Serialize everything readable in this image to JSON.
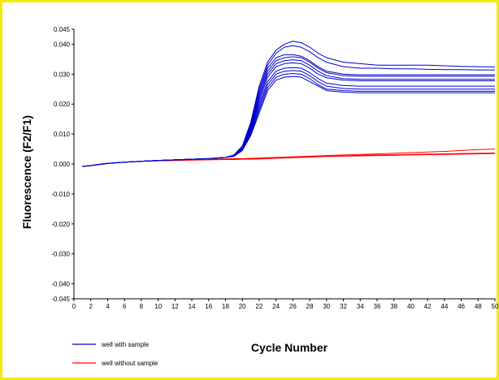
{
  "chart_data": {
    "type": "line",
    "xlabel": "Cycle Number",
    "ylabel": "Fluorescence (F2/F1)",
    "xlim": [
      0,
      50
    ],
    "ylim": [
      -0.045,
      0.045
    ],
    "x_ticks": [
      "0",
      "2",
      "4",
      "6",
      "8",
      "10",
      "12",
      "14",
      "16",
      "18",
      "20",
      "22",
      "24",
      "26",
      "28",
      "30",
      "32",
      "34",
      "36",
      "38",
      "40",
      "42",
      "44",
      "46",
      "48",
      "50"
    ],
    "y_ticks": [
      "0.045",
      "0.040",
      "0.030",
      "0.020",
      "0.010",
      "0.000",
      "-0.010",
      "-0.020",
      "-0.030",
      "-0.040",
      "-0.045"
    ],
    "y_tick_values": [
      0.045,
      0.04,
      0.03,
      0.02,
      0.01,
      0.0,
      -0.01,
      -0.02,
      -0.03,
      -0.04,
      -0.045
    ],
    "legend": [
      {
        "label": "well with sample",
        "color": "#0000cc"
      },
      {
        "label": "well without sample",
        "color": "#ff0000"
      }
    ],
    "grid": false,
    "legend_position": "bottom-left",
    "x": [
      1,
      2,
      4,
      6,
      8,
      10,
      12,
      14,
      16,
      18,
      19,
      20,
      21,
      22,
      23,
      24,
      25,
      26,
      27,
      28,
      29,
      30,
      32,
      34,
      36,
      38,
      40,
      42,
      44,
      46,
      48,
      50
    ],
    "series_with_sample": [
      [
        -0.0008,
        -0.0005,
        0.0002,
        0.0006,
        0.0009,
        0.0012,
        0.0014,
        0.0016,
        0.0018,
        0.0022,
        0.003,
        0.006,
        0.014,
        0.026,
        0.034,
        0.038,
        0.04,
        0.041,
        0.0405,
        0.039,
        0.037,
        0.0355,
        0.034,
        0.0335,
        0.033,
        0.033,
        0.033,
        0.033,
        0.0328,
        0.0326,
        0.0325,
        0.0324
      ],
      [
        -0.0008,
        -0.0005,
        0.0002,
        0.0006,
        0.0009,
        0.0012,
        0.0014,
        0.0016,
        0.0018,
        0.0022,
        0.003,
        0.006,
        0.0135,
        0.025,
        0.033,
        0.037,
        0.039,
        0.0395,
        0.039,
        0.0375,
        0.0355,
        0.034,
        0.0325,
        0.032,
        0.032,
        0.0318,
        0.0318,
        0.0316,
        0.0315,
        0.0315,
        0.0314,
        0.0314
      ],
      [
        -0.0008,
        -0.0005,
        0.0002,
        0.0006,
        0.0009,
        0.0012,
        0.0014,
        0.0016,
        0.0018,
        0.0022,
        0.0028,
        0.0055,
        0.013,
        0.024,
        0.032,
        0.0355,
        0.0365,
        0.0365,
        0.036,
        0.0345,
        0.0325,
        0.031,
        0.03,
        0.0298,
        0.0298,
        0.0298,
        0.0298,
        0.0298,
        0.0298,
        0.0298,
        0.0298,
        0.0298
      ],
      [
        -0.0008,
        -0.0005,
        0.0002,
        0.0006,
        0.0009,
        0.0012,
        0.0014,
        0.0016,
        0.0018,
        0.0022,
        0.0028,
        0.0055,
        0.0125,
        0.023,
        0.031,
        0.0345,
        0.0355,
        0.0358,
        0.0355,
        0.034,
        0.032,
        0.0305,
        0.0295,
        0.0293,
        0.0293,
        0.0293,
        0.0293,
        0.0293,
        0.0293,
        0.0293,
        0.0293,
        0.0293
      ],
      [
        -0.0008,
        -0.0005,
        0.0002,
        0.0006,
        0.0009,
        0.0012,
        0.0014,
        0.0016,
        0.0018,
        0.0022,
        0.0028,
        0.0052,
        0.012,
        0.022,
        0.03,
        0.0335,
        0.0345,
        0.0348,
        0.0345,
        0.033,
        0.031,
        0.0295,
        0.0285,
        0.0283,
        0.0283,
        0.0283,
        0.0283,
        0.0283,
        0.0283,
        0.0283,
        0.0283,
        0.0283
      ],
      [
        -0.0008,
        -0.0005,
        0.0002,
        0.0006,
        0.0009,
        0.0012,
        0.0014,
        0.0016,
        0.0018,
        0.0022,
        0.0027,
        0.005,
        0.0115,
        0.021,
        0.029,
        0.0325,
        0.0335,
        0.0338,
        0.0335,
        0.032,
        0.03,
        0.0288,
        0.028,
        0.0278,
        0.0278,
        0.0278,
        0.0278,
        0.0278,
        0.0278,
        0.0278,
        0.0278,
        0.0278
      ],
      [
        -0.0008,
        -0.0005,
        0.0002,
        0.0006,
        0.0009,
        0.0012,
        0.0014,
        0.0016,
        0.0018,
        0.0022,
        0.0027,
        0.005,
        0.011,
        0.02,
        0.0275,
        0.031,
        0.032,
        0.0322,
        0.032,
        0.0305,
        0.0285,
        0.027,
        0.0262,
        0.026,
        0.026,
        0.026,
        0.026,
        0.026,
        0.026,
        0.026,
        0.026,
        0.026
      ],
      [
        -0.0008,
        -0.0005,
        0.0002,
        0.0006,
        0.0009,
        0.0012,
        0.0014,
        0.0016,
        0.0018,
        0.0022,
        0.0026,
        0.0048,
        0.0105,
        0.019,
        0.0265,
        0.03,
        0.031,
        0.0312,
        0.031,
        0.0295,
        0.0275,
        0.026,
        0.0252,
        0.025,
        0.025,
        0.025,
        0.025,
        0.025,
        0.025,
        0.025,
        0.025,
        0.025
      ],
      [
        -0.0008,
        -0.0005,
        0.0002,
        0.0006,
        0.0009,
        0.0012,
        0.0014,
        0.0016,
        0.0018,
        0.0022,
        0.0026,
        0.0046,
        0.01,
        0.018,
        0.0255,
        0.029,
        0.03,
        0.0302,
        0.03,
        0.0285,
        0.0265,
        0.025,
        0.0245,
        0.0243,
        0.0243,
        0.0243,
        0.0243,
        0.0243,
        0.0243,
        0.0243,
        0.0243,
        0.0243
      ],
      [
        -0.0008,
        -0.0005,
        0.0002,
        0.0006,
        0.0009,
        0.0012,
        0.0014,
        0.0016,
        0.0018,
        0.0022,
        0.0026,
        0.0045,
        0.0095,
        0.017,
        0.0245,
        0.028,
        0.029,
        0.0292,
        0.029,
        0.0275,
        0.026,
        0.0245,
        0.024,
        0.0238,
        0.0238,
        0.0238,
        0.0238,
        0.0238,
        0.0238,
        0.0238,
        0.0238,
        0.0238
      ]
    ],
    "series_without_sample": [
      [
        -0.0008,
        -0.0005,
        0.0002,
        0.0006,
        0.0009,
        0.0011,
        0.0013,
        0.0015,
        0.0016,
        0.0017,
        0.0018,
        0.0018,
        0.0019,
        0.002,
        0.0021,
        0.0022,
        0.0023,
        0.0024,
        0.0025,
        0.0026,
        0.0027,
        0.0028,
        0.003,
        0.0032,
        0.0034,
        0.0036,
        0.0038,
        0.004,
        0.0042,
        0.0045,
        0.0048,
        0.005
      ],
      [
        -0.0008,
        -0.0005,
        0.0002,
        0.0006,
        0.0009,
        0.0011,
        0.0012,
        0.0014,
        0.0015,
        0.0016,
        0.0016,
        0.0017,
        0.0017,
        0.0018,
        0.0019,
        0.002,
        0.0021,
        0.0022,
        0.0023,
        0.0024,
        0.0025,
        0.0026,
        0.0027,
        0.0029,
        0.003,
        0.0031,
        0.0032,
        0.0033,
        0.0034,
        0.0035,
        0.0036,
        0.0037
      ],
      [
        -0.0008,
        -0.0005,
        0.0002,
        0.0006,
        0.0009,
        0.0011,
        0.0012,
        0.0013,
        0.0014,
        0.0015,
        0.0015,
        0.0016,
        0.0016,
        0.0017,
        0.0018,
        0.0019,
        0.002,
        0.0021,
        0.0022,
        0.0023,
        0.0024,
        0.0025,
        0.0026,
        0.0027,
        0.0028,
        0.0029,
        0.003,
        0.0031,
        0.0032,
        0.0033,
        0.0034,
        0.0035
      ]
    ]
  }
}
